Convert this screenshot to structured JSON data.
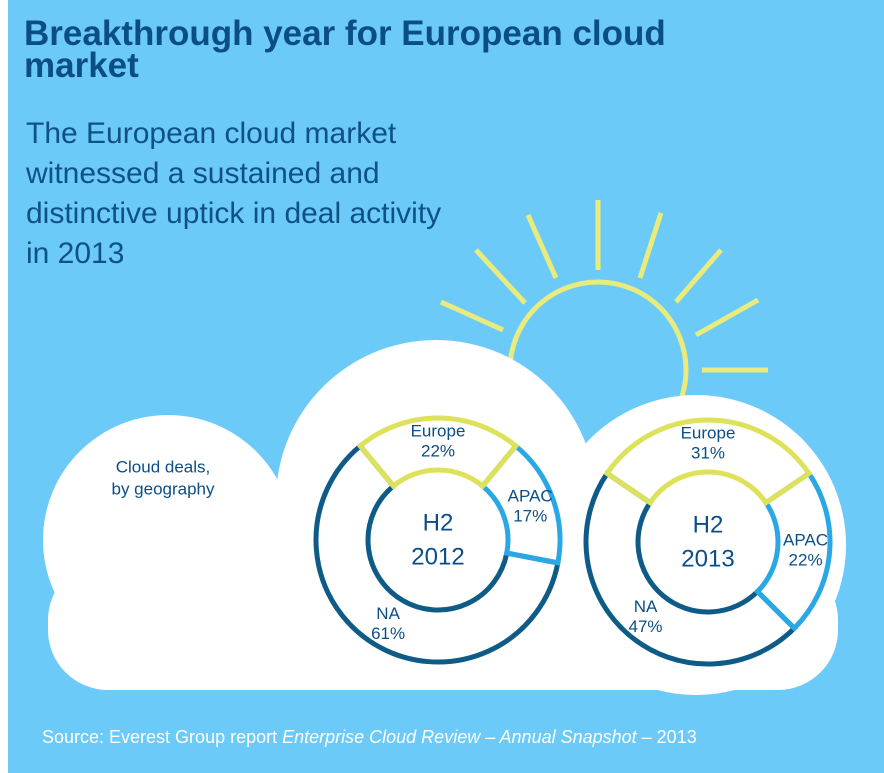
{
  "title": "Breakthrough year for European cloud market",
  "subtitle": "The European cloud market witnessed a sustained and distinctive uptick in deal activity in 2013",
  "note": [
    "Cloud deals,",
    "by geography"
  ],
  "source": [
    {
      "text": "Source: Everest Group report ",
      "italic": false
    },
    {
      "text": "Enterprise Cloud Review – Annual Snapshot",
      "italic": true
    },
    {
      "text": " – 2013",
      "italic": false
    }
  ],
  "chart_data": [
    {
      "type": "donut",
      "center_label": [
        "H2",
        "2012"
      ],
      "categories": [
        "Europe",
        "APAC",
        "NA"
      ],
      "values": [
        22,
        17,
        61
      ],
      "value_labels": [
        "22%",
        "17%",
        "61%"
      ],
      "colors": [
        "#dde25a",
        "#2aa8e6",
        "#0d5b86"
      ]
    },
    {
      "type": "donut",
      "center_label": [
        "H2",
        "2013"
      ],
      "categories": [
        "Europe",
        "APAC",
        "NA"
      ],
      "values": [
        31,
        22,
        47
      ],
      "value_labels": [
        "31%",
        "22%",
        "47%"
      ],
      "colors": [
        "#dde25a",
        "#2aa8e6",
        "#0d5b86"
      ]
    }
  ]
}
